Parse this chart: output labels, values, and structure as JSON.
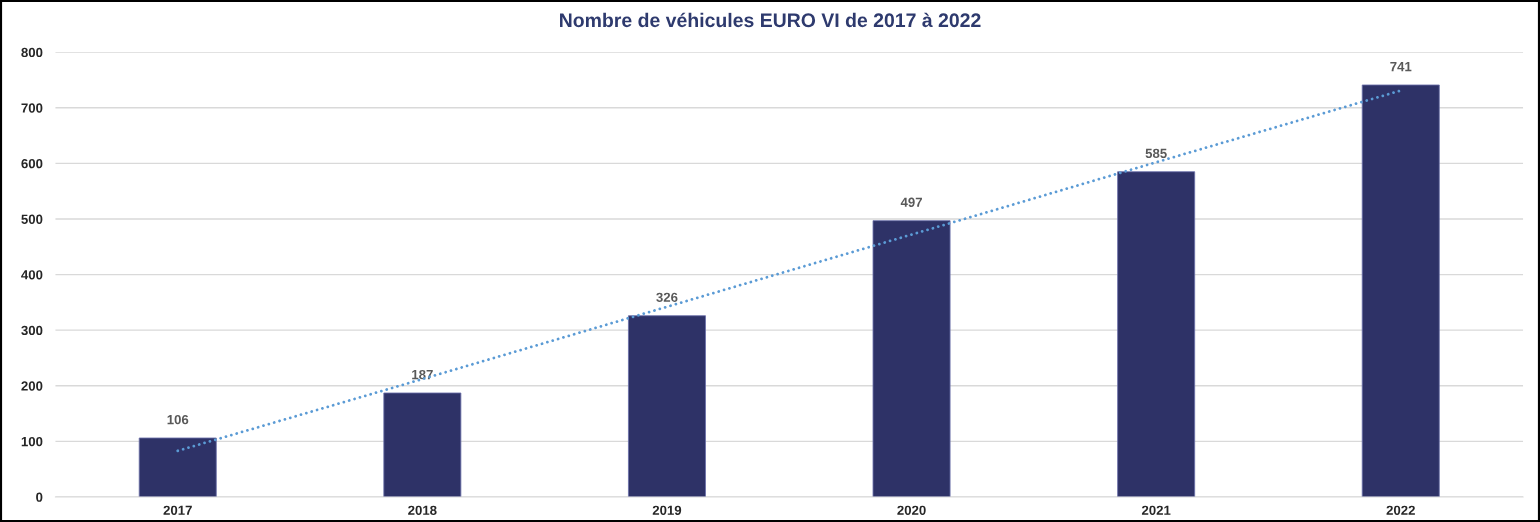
{
  "chart_data": {
    "type": "bar",
    "title": "Nombre de véhicules EURO VI de 2017 à 2022",
    "categories": [
      "2017",
      "2018",
      "2019",
      "2020",
      "2021",
      "2022"
    ],
    "series": [
      {
        "color": "#2e3267",
        "values": [
          106,
          187,
          326,
          497,
          585,
          741
        ],
        "data_labels": true
      },
      {
        "type": "line",
        "color": "#5b9bd5",
        "line_style": "dotted",
        "marker": "none",
        "values": [
          83,
          212,
          342,
          472,
          602,
          731
        ]
      }
    ],
    "ylim": [
      0,
      800
    ],
    "yticks": [
      0,
      100,
      200,
      300,
      400,
      500,
      600,
      700,
      800
    ],
    "grid": "y"
  }
}
